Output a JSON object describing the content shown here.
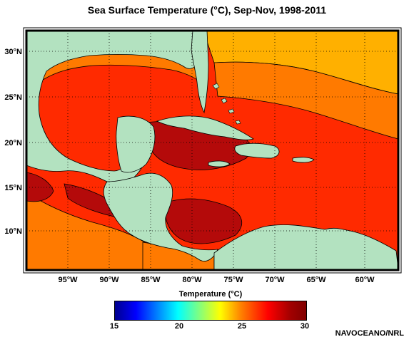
{
  "title": "Sea Surface Temperature (°C), Sep-Nov, 1998-2011",
  "map": {
    "lat_labels": [
      "30°N",
      "25°N",
      "20°N",
      "15°N",
      "10°N"
    ],
    "lon_labels": [
      "95°W",
      "90°W",
      "85°W",
      "80°W",
      "75°W",
      "70°W",
      "65°W",
      "60°W"
    ],
    "colors": {
      "land": "#b3e2c0",
      "sst_27": "#ffb000",
      "sst_28": "#ff7a00",
      "sst_29": "#ff2a00",
      "sst_30": "#b40a0a",
      "sst_26": "#ffe800"
    }
  },
  "colorbar": {
    "title": "Temperature (°C)",
    "ticks": [
      "15",
      "20",
      "25",
      "30"
    ]
  },
  "credit": "NAVOCEANO/NRL"
}
